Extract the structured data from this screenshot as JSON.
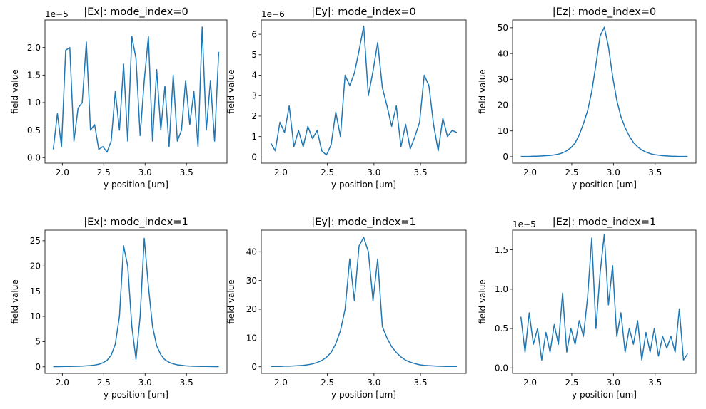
{
  "chart_data": [
    {
      "type": "line",
      "title": "|Ex|: mode_index=0",
      "xlabel": "y position [um]",
      "ylabel": "field value",
      "y_scale_label": "1e−5",
      "color": "#1f77b4",
      "x": [
        1.89,
        1.94,
        1.99,
        2.04,
        2.09,
        2.14,
        2.19,
        2.24,
        2.29,
        2.34,
        2.39,
        2.44,
        2.49,
        2.54,
        2.59,
        2.64,
        2.69,
        2.74,
        2.79,
        2.84,
        2.89,
        2.94,
        2.99,
        3.04,
        3.09,
        3.14,
        3.19,
        3.24,
        3.29,
        3.34,
        3.39,
        3.44,
        3.49,
        3.54,
        3.59,
        3.64,
        3.69,
        3.74,
        3.79,
        3.84,
        3.89
      ],
      "values": [
        0.15,
        0.8,
        0.2,
        1.95,
        2.0,
        0.3,
        0.9,
        1.0,
        2.1,
        0.5,
        0.6,
        0.15,
        0.2,
        0.1,
        0.3,
        1.2,
        0.5,
        1.7,
        0.3,
        2.2,
        1.8,
        0.4,
        1.4,
        2.2,
        0.3,
        1.6,
        0.5,
        1.3,
        0.2,
        1.5,
        0.3,
        0.5,
        1.4,
        0.6,
        1.2,
        0.2,
        2.37,
        0.5,
        1.4,
        0.3,
        1.92
      ],
      "xlim": [
        1.79,
        3.99
      ],
      "xticks": [
        {
          "value": 2,
          "label": "2.0"
        },
        2.5,
        {
          "value": 3,
          "label": "3.0"
        },
        3.5
      ],
      "ylim": [
        -0.1,
        2.5
      ],
      "yticks": [
        {
          "value": 0,
          "label": "0.0"
        },
        0.5,
        {
          "value": 1,
          "label": "1.0"
        },
        1.5,
        {
          "value": 2,
          "label": "2.0"
        }
      ]
    },
    {
      "type": "line",
      "title": "|Ey|: mode_index=0",
      "xlabel": "y position [um]",
      "ylabel": "field value",
      "y_scale_label": "1e−6",
      "color": "#1f77b4",
      "x": [
        1.89,
        1.94,
        1.99,
        2.04,
        2.09,
        2.14,
        2.19,
        2.24,
        2.29,
        2.34,
        2.39,
        2.44,
        2.49,
        2.54,
        2.59,
        2.64,
        2.69,
        2.74,
        2.79,
        2.84,
        2.89,
        2.94,
        2.99,
        3.04,
        3.09,
        3.14,
        3.19,
        3.24,
        3.29,
        3.34,
        3.39,
        3.44,
        3.49,
        3.54,
        3.59,
        3.64,
        3.69,
        3.74,
        3.79,
        3.84,
        3.89
      ],
      "values": [
        0.7,
        0.3,
        1.7,
        1.2,
        2.5,
        0.5,
        1.3,
        0.5,
        1.5,
        0.9,
        1.3,
        0.3,
        0.1,
        0.6,
        2.2,
        1.0,
        4.0,
        3.5,
        4.1,
        5.2,
        6.4,
        3.0,
        4.2,
        5.6,
        3.4,
        2.5,
        1.5,
        2.5,
        0.5,
        1.6,
        0.4,
        1.0,
        1.7,
        4.0,
        3.5,
        1.6,
        0.3,
        1.9,
        1.0,
        1.3,
        1.2
      ],
      "xlim": [
        1.79,
        3.99
      ],
      "xticks": [
        {
          "value": 2,
          "label": "2.0"
        },
        2.5,
        {
          "value": 3,
          "label": "3.0"
        },
        3.5
      ],
      "ylim": [
        -0.3,
        6.7
      ],
      "yticks": [
        0,
        1,
        2,
        3,
        4,
        5,
        6
      ]
    },
    {
      "type": "line",
      "title": "|Ez|: mode_index=0",
      "xlabel": "y position [um]",
      "ylabel": "field value",
      "color": "#1f77b4",
      "x": [
        1.89,
        1.94,
        1.99,
        2.04,
        2.09,
        2.14,
        2.19,
        2.24,
        2.29,
        2.34,
        2.39,
        2.44,
        2.49,
        2.54,
        2.59,
        2.64,
        2.69,
        2.74,
        2.79,
        2.84,
        2.89,
        2.94,
        2.99,
        3.04,
        3.09,
        3.14,
        3.19,
        3.24,
        3.29,
        3.34,
        3.39,
        3.44,
        3.49,
        3.54,
        3.59,
        3.64,
        3.69,
        3.74,
        3.79,
        3.84,
        3.89
      ],
      "values": [
        0.1,
        0.1,
        0.1,
        0.2,
        0.2,
        0.3,
        0.4,
        0.5,
        0.7,
        1.0,
        1.5,
        2.3,
        3.5,
        5.3,
        8.5,
        12.8,
        17.8,
        25.3,
        35.7,
        46.7,
        50.2,
        42.7,
        31.2,
        21.9,
        15.5,
        11.3,
        8.0,
        5.5,
        3.8,
        2.6,
        1.8,
        1.2,
        0.8,
        0.6,
        0.4,
        0.3,
        0.2,
        0.15,
        0.1,
        0.1,
        0.1
      ],
      "xlim": [
        1.79,
        3.99
      ],
      "xticks": [
        {
          "value": 2,
          "label": "2.0"
        },
        2.5,
        {
          "value": 3,
          "label": "3.0"
        },
        3.5
      ],
      "ylim": [
        -2.5,
        53
      ],
      "yticks": [
        0,
        10,
        20,
        30,
        40,
        50
      ]
    },
    {
      "type": "line",
      "title": "|Ex|: mode_index=1",
      "xlabel": "y position [um]",
      "ylabel": "field value",
      "color": "#1f77b4",
      "x": [
        1.89,
        1.94,
        1.99,
        2.04,
        2.09,
        2.14,
        2.19,
        2.24,
        2.29,
        2.34,
        2.39,
        2.44,
        2.49,
        2.54,
        2.59,
        2.64,
        2.69,
        2.74,
        2.79,
        2.84,
        2.89,
        2.94,
        2.99,
        3.04,
        3.09,
        3.14,
        3.19,
        3.24,
        3.29,
        3.34,
        3.39,
        3.44,
        3.49,
        3.54,
        3.59,
        3.64,
        3.69,
        3.74,
        3.79,
        3.84,
        3.89
      ],
      "values": [
        0.05,
        0.05,
        0.06,
        0.07,
        0.08,
        0.1,
        0.12,
        0.15,
        0.2,
        0.25,
        0.35,
        0.5,
        0.8,
        1.3,
        2.3,
        4.5,
        10,
        24,
        20,
        8,
        1.5,
        10,
        25.5,
        16,
        8,
        4.2,
        2.4,
        1.4,
        0.9,
        0.6,
        0.4,
        0.3,
        0.2,
        0.15,
        0.12,
        0.1,
        0.08,
        0.07,
        0.06,
        0.05,
        0.05
      ],
      "xlim": [
        1.79,
        3.99
      ],
      "xticks": [
        {
          "value": 2,
          "label": "2.0"
        },
        2.5,
        {
          "value": 3,
          "label": "3.0"
        },
        3.5
      ],
      "ylim": [
        -1.3,
        27.1
      ],
      "yticks": [
        0,
        5,
        10,
        15,
        20,
        25
      ]
    },
    {
      "type": "line",
      "title": "|Ey|: mode_index=1",
      "xlabel": "y position [um]",
      "ylabel": "field value",
      "color": "#1f77b4",
      "x": [
        1.89,
        1.94,
        1.99,
        2.04,
        2.09,
        2.14,
        2.19,
        2.24,
        2.29,
        2.34,
        2.39,
        2.44,
        2.49,
        2.54,
        2.59,
        2.64,
        2.69,
        2.74,
        2.79,
        2.84,
        2.89,
        2.94,
        2.99,
        3.04,
        3.09,
        3.14,
        3.19,
        3.24,
        3.29,
        3.34,
        3.39,
        3.44,
        3.49,
        3.54,
        3.59,
        3.64,
        3.69,
        3.74,
        3.79,
        3.84,
        3.89
      ],
      "values": [
        0.1,
        0.1,
        0.1,
        0.2,
        0.2,
        0.3,
        0.4,
        0.5,
        0.7,
        1.0,
        1.5,
        2.2,
        3.3,
        5,
        8,
        12.5,
        20,
        37.5,
        23,
        42,
        45,
        40,
        23,
        37.5,
        14,
        10,
        7,
        5,
        3.4,
        2.3,
        1.6,
        1.1,
        0.7,
        0.5,
        0.4,
        0.3,
        0.2,
        0.15,
        0.1,
        0.1,
        0.1
      ],
      "xlim": [
        1.79,
        3.99
      ],
      "xticks": [
        {
          "value": 2,
          "label": "2.0"
        },
        2.5,
        {
          "value": 3,
          "label": "3.0"
        },
        3.5
      ],
      "ylim": [
        -2.3,
        47.5
      ],
      "yticks": [
        0,
        10,
        20,
        30,
        40
      ]
    },
    {
      "type": "line",
      "title": "|Ez|: mode_index=1",
      "xlabel": "y position [um]",
      "ylabel": "field value",
      "y_scale_label": "1e−5",
      "color": "#1f77b4",
      "x": [
        1.89,
        1.94,
        1.99,
        2.04,
        2.09,
        2.14,
        2.19,
        2.24,
        2.29,
        2.34,
        2.39,
        2.44,
        2.49,
        2.54,
        2.59,
        2.64,
        2.69,
        2.74,
        2.79,
        2.84,
        2.89,
        2.94,
        2.99,
        3.04,
        3.09,
        3.14,
        3.19,
        3.24,
        3.29,
        3.34,
        3.39,
        3.44,
        3.49,
        3.54,
        3.59,
        3.64,
        3.69,
        3.74,
        3.79,
        3.84,
        3.89
      ],
      "values": [
        0.65,
        0.2,
        0.7,
        0.3,
        0.5,
        0.1,
        0.45,
        0.2,
        0.55,
        0.3,
        0.95,
        0.2,
        0.5,
        0.3,
        0.6,
        0.4,
        0.9,
        1.65,
        0.5,
        1.2,
        1.7,
        0.8,
        1.3,
        0.4,
        0.7,
        0.2,
        0.5,
        0.3,
        0.6,
        0.1,
        0.45,
        0.2,
        0.5,
        0.15,
        0.4,
        0.25,
        0.4,
        0.2,
        0.75,
        0.1,
        0.18
      ],
      "xlim": [
        1.79,
        3.99
      ],
      "xticks": [
        {
          "value": 2,
          "label": "2.0"
        },
        2.5,
        {
          "value": 3,
          "label": "3.0"
        },
        3.5
      ],
      "ylim": [
        -0.07,
        1.75
      ],
      "yticks": [
        {
          "value": 0,
          "label": "0.0"
        },
        0.5,
        {
          "value": 1,
          "label": "1.0"
        },
        1.5
      ]
    }
  ]
}
